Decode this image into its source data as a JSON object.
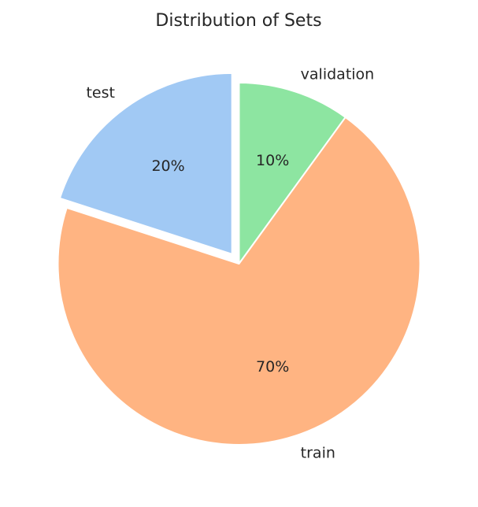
{
  "chart_data": {
    "type": "pie",
    "title": "Distribution of Sets",
    "slices": [
      {
        "label": "validation",
        "value": 10,
        "pct_label": "10%",
        "color": "#8de5a1",
        "exploded": false
      },
      {
        "label": "train",
        "value": 70,
        "pct_label": "70%",
        "color": "#ffb482",
        "exploded": false
      },
      {
        "label": "test",
        "value": 20,
        "pct_label": "20%",
        "color": "#a1c9f4",
        "exploded": true
      }
    ],
    "start_angle_deg": 90,
    "direction": "clockwise"
  }
}
